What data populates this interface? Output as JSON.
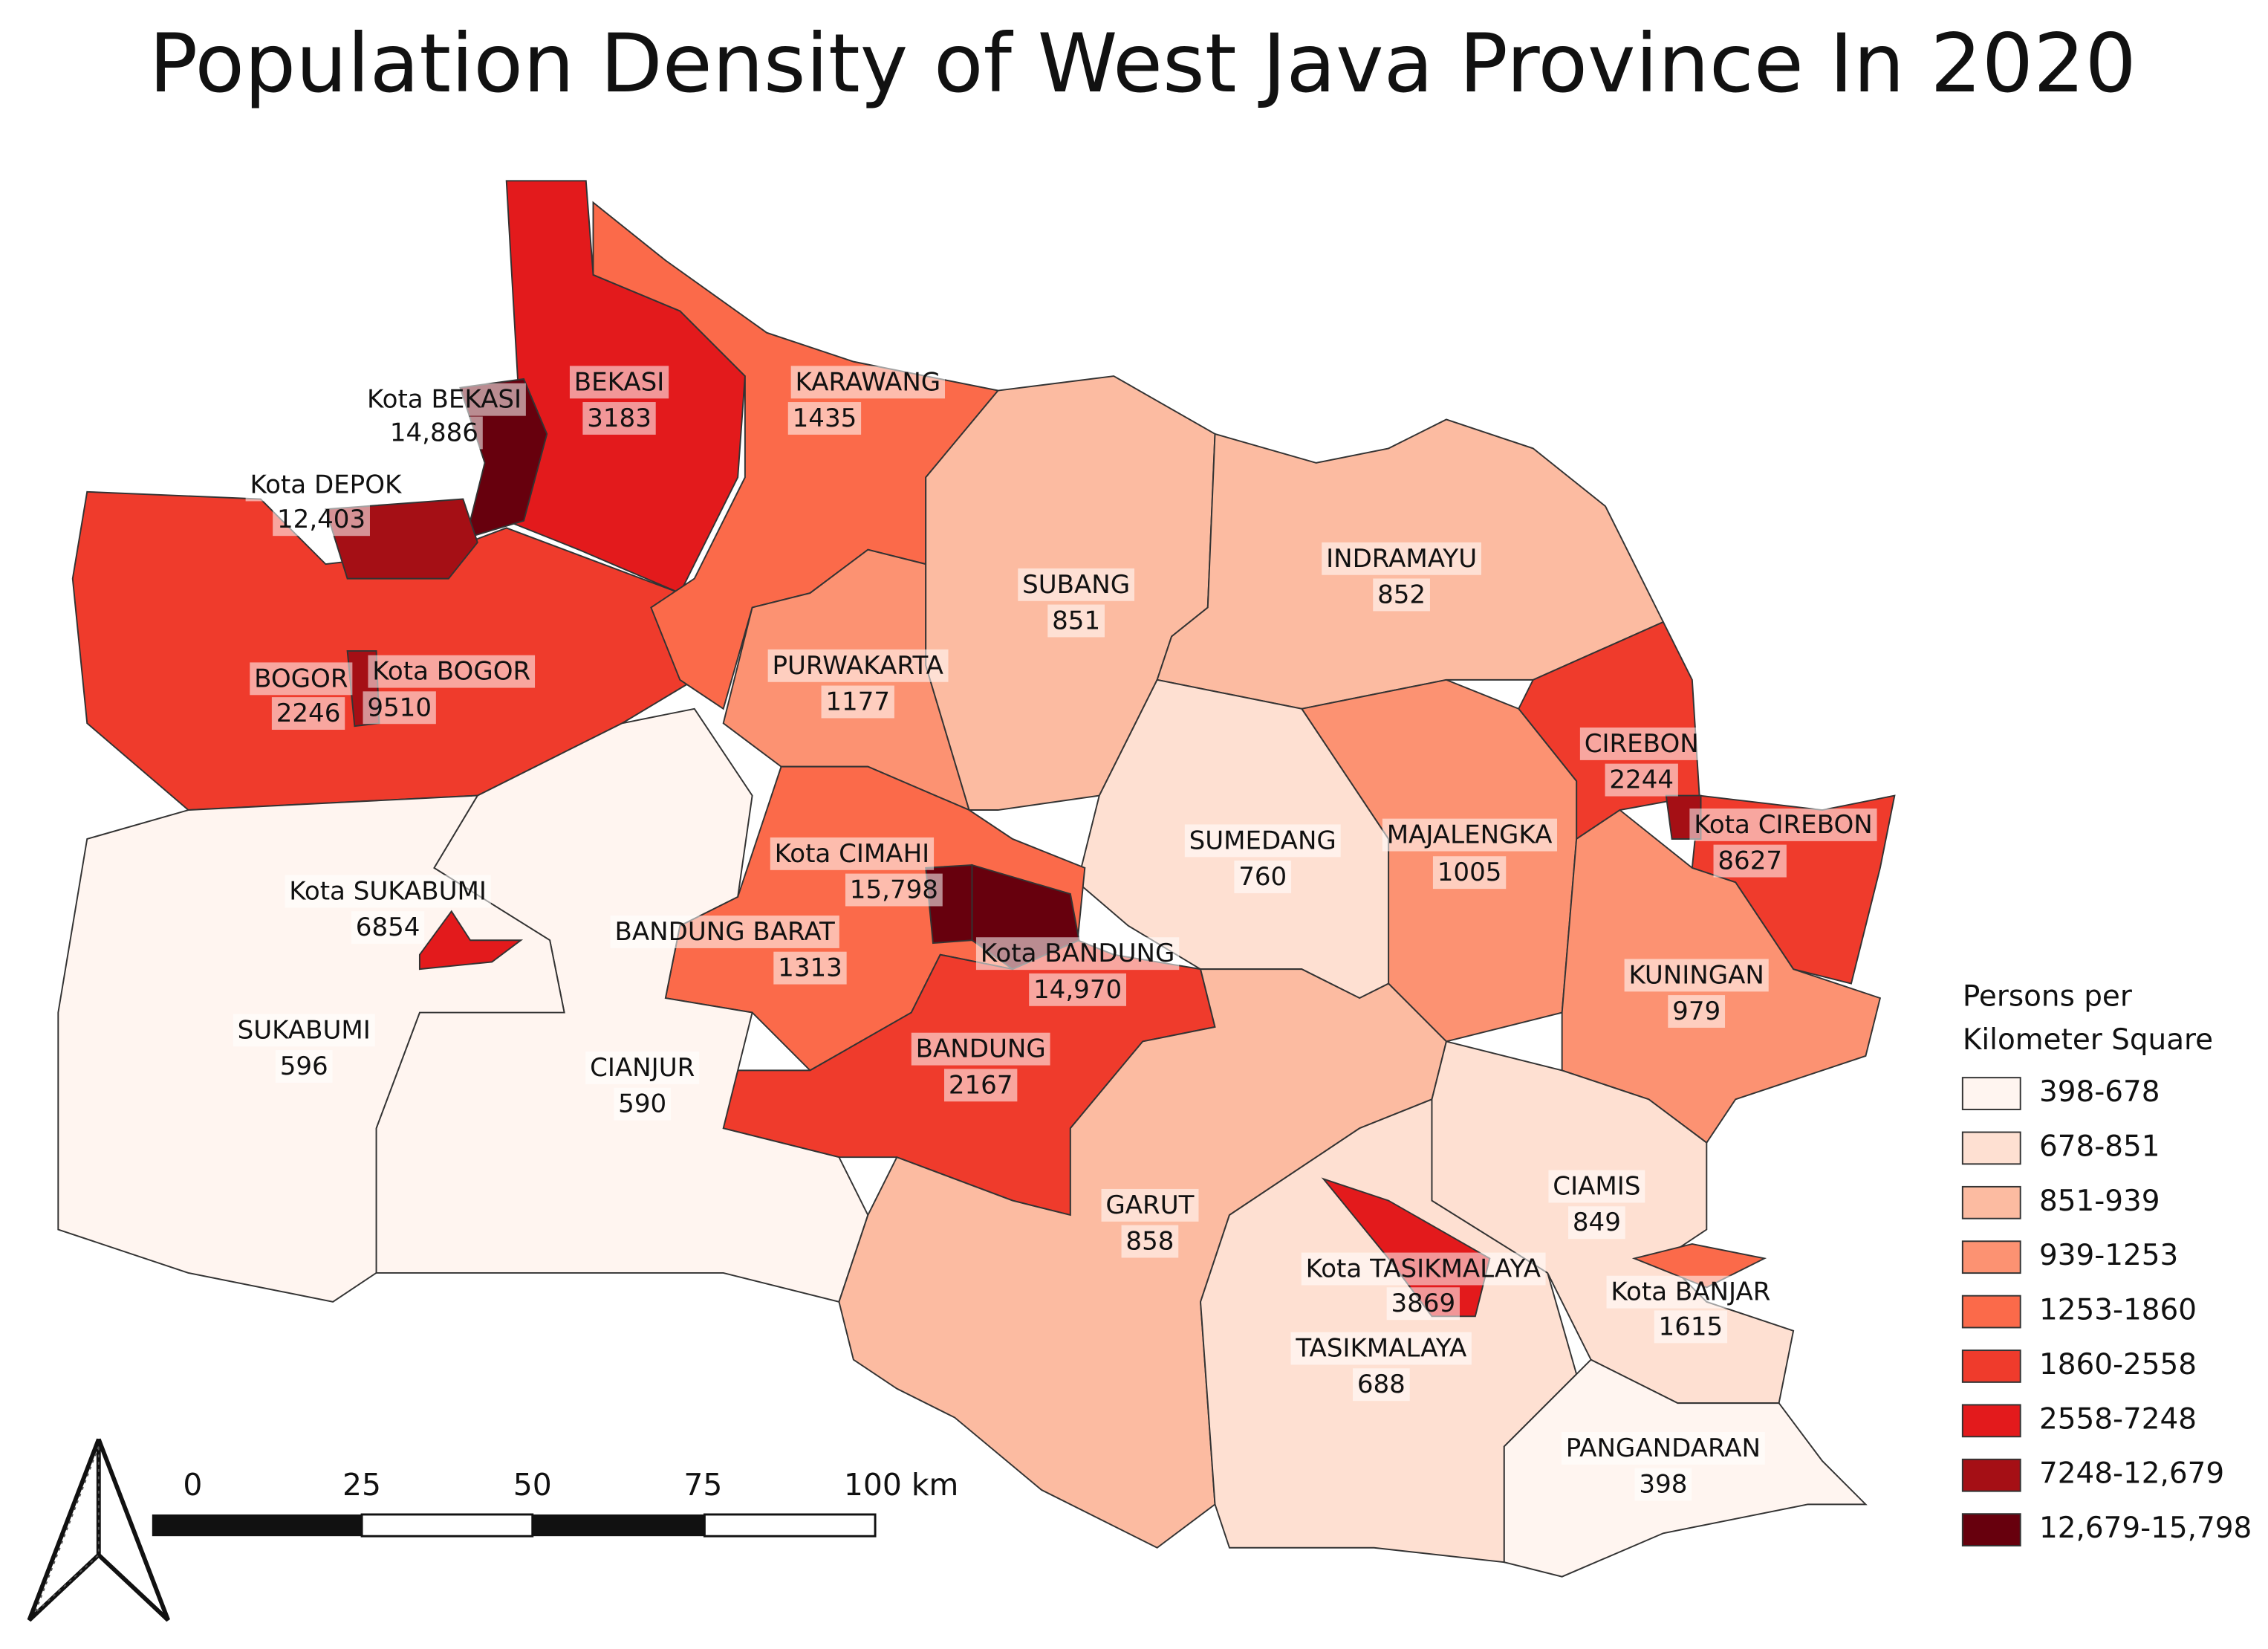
{
  "title": "Population Density of West Java Province In 2020",
  "regions": [
    {
      "name": "BOGOR",
      "density": 2246,
      "color": "#ef3b2c"
    },
    {
      "name": "BEKASI",
      "density": 3183,
      "color": "#e31a1c"
    },
    {
      "name": "KARAWANG",
      "density": 1435,
      "color": "#fb6a4a"
    },
    {
      "name": "PURWAKARTA",
      "density": 1177,
      "color": "#fc9272"
    },
    {
      "name": "SUBANG",
      "density": 851,
      "color": "#fcbba1"
    },
    {
      "name": "INDRAMAYU",
      "density": 852,
      "color": "#fcbba1"
    },
    {
      "name": "CIREBON",
      "density": 2244,
      "color": "#ef3b2c"
    },
    {
      "name": "MAJALENGKA",
      "density": 1005,
      "color": "#fc9272"
    },
    {
      "name": "KUNINGAN",
      "density": 979,
      "color": "#fc9272"
    },
    {
      "name": "SUMEDANG",
      "density": 760,
      "color": "#fee0d2"
    },
    {
      "name": "BANDUNG BARAT",
      "density": 1313,
      "color": "#fb6a4a"
    },
    {
      "name": "BANDUNG",
      "density": 2167,
      "color": "#ef3b2c"
    },
    {
      "name": "CIANJUR",
      "density": 590,
      "color": "#fff5f0"
    },
    {
      "name": "SUKABUMI",
      "density": 596,
      "color": "#fff5f0"
    },
    {
      "name": "GARUT",
      "density": 858,
      "color": "#fcbba1"
    },
    {
      "name": "TASIKMALAYA",
      "density": 688,
      "color": "#fee0d2"
    },
    {
      "name": "CIAMIS",
      "density": 849,
      "color": "#fee0d2"
    },
    {
      "name": "PANGANDARAN",
      "density": 398,
      "color": "#fff5f0"
    },
    {
      "name": "Kota BEKASI",
      "density": {
        "value": 14886,
        "label": "14,886"
      },
      "color": "#67000d"
    },
    {
      "name": "Kota DEPOK",
      "density": {
        "value": 12403,
        "label": "12,403"
      },
      "color": "#a50f15"
    },
    {
      "name": "Kota BOGOR",
      "density": 9510,
      "color": "#a50f15"
    },
    {
      "name": "Kota CIREBON",
      "density": 8627,
      "color": "#a50f15"
    },
    {
      "name": "Kota CIMAHI",
      "density": {
        "value": 15798,
        "label": "15,798"
      },
      "color": "#67000d"
    },
    {
      "name": "Kota BANDUNG",
      "density": {
        "value": 14970,
        "label": "14,970"
      },
      "color": "#67000d"
    },
    {
      "name": "Kota SUKABUMI",
      "density": 6854,
      "color": "#e31a1c"
    },
    {
      "name": "Kota TASIKMALAYA",
      "density": 3869,
      "color": "#e31a1c"
    },
    {
      "name": "Kota BANJAR",
      "density": 1615,
      "color": "#fb6a4a"
    }
  ],
  "legend": {
    "title": [
      "Persons per",
      "Kilometer Square"
    ],
    "classes": [
      {
        "label": "398-678",
        "color": "#fff5f0"
      },
      {
        "label": "678-851",
        "color": "#fee0d2"
      },
      {
        "label": "851-939",
        "color": "#fcbba1"
      },
      {
        "label": "939-1253",
        "color": "#fc9272"
      },
      {
        "label": "1253-1860",
        "color": "#fb6a4a"
      },
      {
        "label": "1860-2558",
        "color": "#ef3b2c"
      },
      {
        "label": "2558-7248",
        "color": "#e31a1c"
      },
      {
        "label": "7248-12,679",
        "color": "#a50f15"
      },
      {
        "label": "12,679-15,798",
        "color": "#67000d"
      }
    ]
  },
  "scale_bar": {
    "labels": [
      "0",
      "25",
      "50",
      "75",
      "100 km"
    ]
  }
}
